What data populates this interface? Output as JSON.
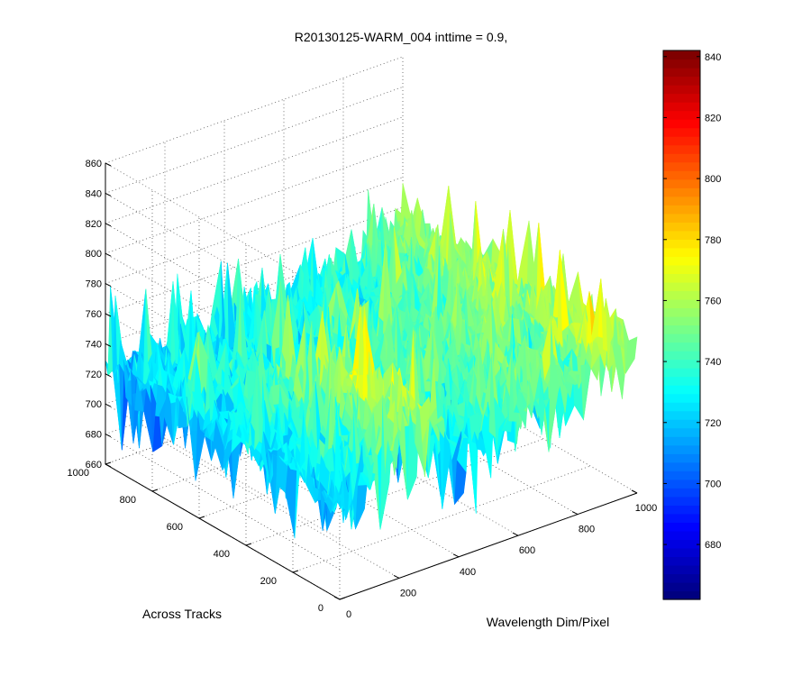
{
  "chart_data": {
    "type": "surface",
    "title": "R20130125-WARM_004 inttime = 0.9,",
    "xlabel": "Wavelength Dim/Pixel",
    "ylabel": "Across Tracks",
    "zlabel": "",
    "x_ticks": [
      "0",
      "200",
      "400",
      "600",
      "800",
      "1000"
    ],
    "y_ticks": [
      "0",
      "200",
      "400",
      "600",
      "800",
      "1000"
    ],
    "z_ticks": [
      "660",
      "680",
      "700",
      "720",
      "740",
      "760",
      "780",
      "800",
      "820",
      "840",
      "860"
    ],
    "xlim": [
      0,
      1000
    ],
    "ylim": [
      0,
      1000
    ],
    "zlim": [
      660,
      860
    ],
    "grid": true,
    "colormap": "jet",
    "colorbar": {
      "ticks": [
        "680",
        "700",
        "720",
        "740",
        "760",
        "780",
        "800",
        "820",
        "840"
      ],
      "range": [
        662,
        842
      ]
    },
    "surface_profile": {
      "description_units": "z values (counts) along wavelength pixel index for representative across-track rows",
      "x": [
        0,
        100,
        200,
        300,
        400,
        500,
        600,
        700,
        800,
        900,
        1000
      ],
      "rows": [
        {
          "y": 0,
          "z": [
            720,
            730,
            745,
            760,
            730,
            735,
            740,
            745,
            750,
            755,
            760
          ]
        },
        {
          "y": 250,
          "z": [
            725,
            735,
            748,
            765,
            735,
            738,
            742,
            748,
            752,
            758,
            762
          ]
        },
        {
          "y": 500,
          "z": [
            728,
            732,
            740,
            745,
            732,
            745,
            740,
            742,
            748,
            752,
            760
          ]
        },
        {
          "y": 750,
          "z": [
            722,
            726,
            728,
            730,
            728,
            735,
            732,
            735,
            740,
            745,
            755
          ]
        },
        {
          "y": 1000,
          "z": [
            725,
            722,
            720,
            722,
            724,
            728,
            726,
            730,
            735,
            742,
            752
          ]
        }
      ]
    }
  }
}
